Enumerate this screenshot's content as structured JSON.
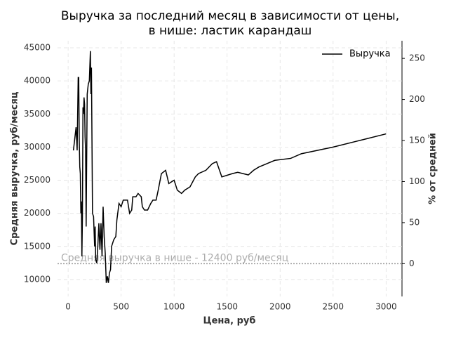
{
  "chart_data": {
    "type": "line",
    "title": [
      "Выручка за последний месяц в зависимости от цены,",
      "в нише: ластик карандаш"
    ],
    "xlabel": "Цена, руб",
    "ylabel": "Средняя выручка, руб/месяц",
    "y2label": "% от средней",
    "xlim": [
      -100,
      3150
    ],
    "ylim": [
      7450,
      46060
    ],
    "y2lim": [
      -39.9,
      271.5
    ],
    "xticks": [
      0,
      500,
      1000,
      1500,
      2000,
      2500,
      3000
    ],
    "yticks": [
      10000,
      15000,
      20000,
      25000,
      30000,
      35000,
      40000,
      45000
    ],
    "y2ticks": [
      0,
      50,
      100,
      150,
      200,
      250
    ],
    "grid": true,
    "legend": "upper right",
    "hline": {
      "value": 12400,
      "label": "Средняя выручка в нише - 12400 руб/месяц",
      "color": "#999999"
    },
    "series": [
      {
        "name": "Выручка",
        "color": "#000000",
        "x": [
          50,
          75,
          85,
          95,
          100,
          105,
          110,
          115,
          120,
          125,
          130,
          135,
          140,
          145,
          150,
          155,
          160,
          165,
          170,
          180,
          190,
          200,
          210,
          215,
          220,
          230,
          240,
          250,
          255,
          260,
          270,
          280,
          290,
          300,
          310,
          320,
          330,
          340,
          350,
          360,
          370,
          380,
          390,
          400,
          410,
          430,
          450,
          460,
          480,
          500,
          520,
          560,
          580,
          600,
          610,
          640,
          660,
          690,
          700,
          720,
          750,
          780,
          800,
          830,
          850,
          880,
          920,
          950,
          1000,
          1030,
          1070,
          1100,
          1150,
          1200,
          1230,
          1300,
          1360,
          1400,
          1450,
          1550,
          1600,
          1650,
          1700,
          1750,
          1800,
          1950,
          2100,
          2200,
          2500,
          2800,
          3000
        ],
        "values": [
          29500,
          33000,
          29500,
          40500,
          40500,
          31000,
          27000,
          26000,
          20000,
          21800,
          13500,
          19500,
          36000,
          35000,
          37500,
          36500,
          31500,
          29500,
          18000,
          38000,
          39500,
          40000,
          44500,
          38000,
          42000,
          20000,
          19500,
          15000,
          18000,
          13000,
          12500,
          15000,
          18500,
          14500,
          18500,
          13500,
          21000,
          16500,
          14000,
          9500,
          10500,
          9500,
          11000,
          11500,
          15000,
          16000,
          16500,
          19000,
          21500,
          21000,
          22000,
          22000,
          20000,
          20500,
          22500,
          22500,
          23000,
          22500,
          21000,
          20500,
          20500,
          21500,
          22000,
          22000,
          23500,
          26000,
          26500,
          24500,
          25000,
          23500,
          23000,
          23500,
          24000,
          25500,
          26000,
          26500,
          27500,
          27800,
          25500,
          26000,
          26200,
          26000,
          25800,
          26500,
          27000,
          28000,
          28300,
          29000,
          30000,
          31200,
          32000
        ]
      }
    ]
  }
}
